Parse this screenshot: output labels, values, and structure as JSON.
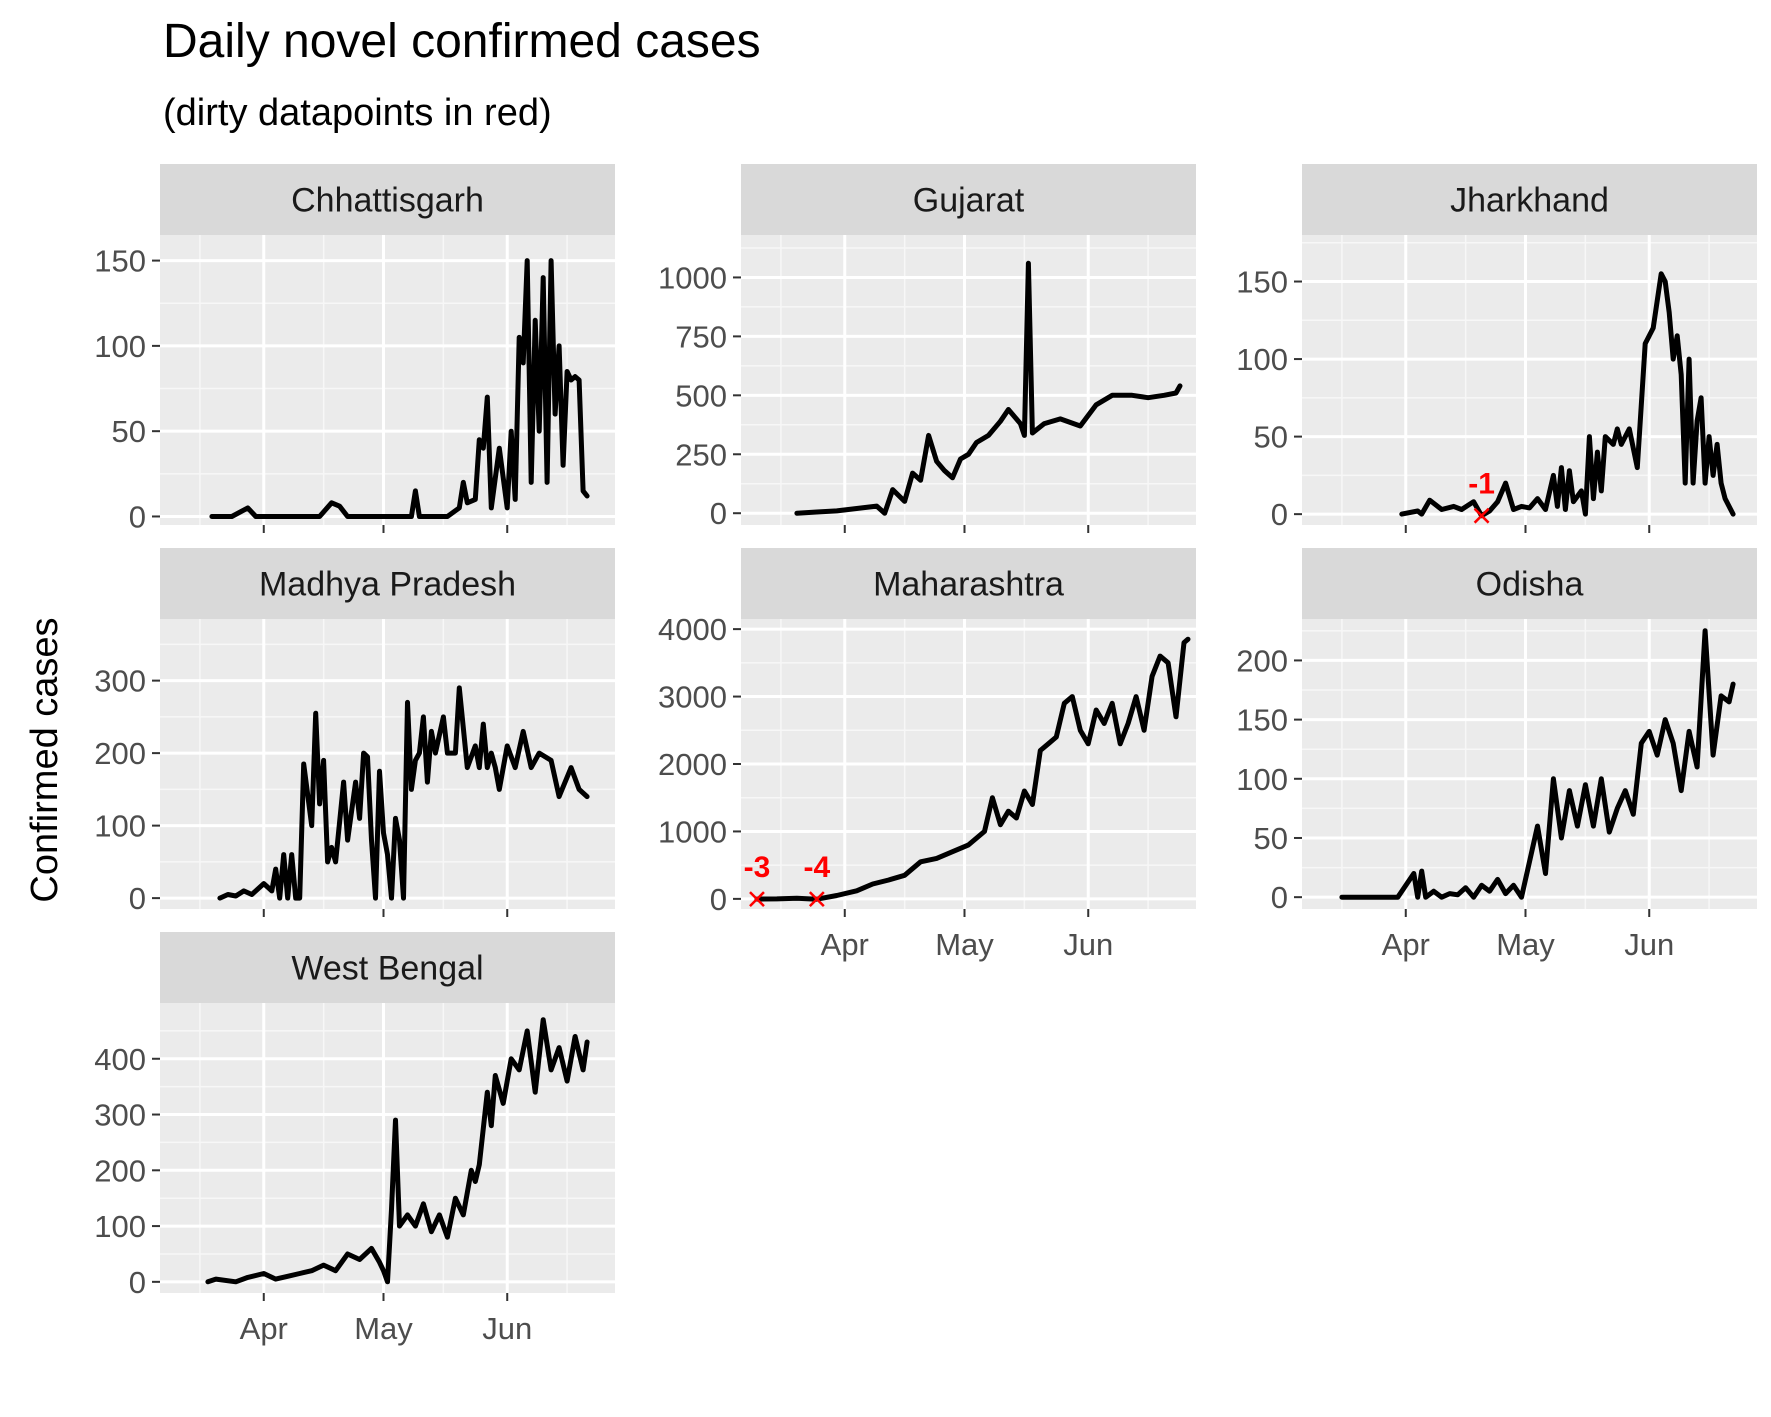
{
  "chart_data": {
    "type": "line",
    "title": "Daily novel confirmed cases",
    "subtitle": "(dirty datapoints in red)",
    "ylabel": "Confirmed cases",
    "xlabel": "",
    "x_ticks": [
      "Apr",
      "May",
      "Jun"
    ],
    "line_color": "#000000",
    "dirty_color": "#ff0000",
    "grid": true,
    "panels": [
      {
        "name": "Chhattisgarh",
        "ylim": [
          -5,
          165
        ],
        "yticks": [
          0,
          50,
          100,
          150
        ],
        "x": [
          "2020-03-19",
          "2020-03-24",
          "2020-03-28",
          "2020-03-30",
          "2020-04-05",
          "2020-04-15",
          "2020-04-18",
          "2020-04-20",
          "2020-04-22",
          "2020-04-30",
          "2020-05-08",
          "2020-05-09",
          "2020-05-10",
          "2020-05-17",
          "2020-05-20",
          "2020-05-21",
          "2020-05-22",
          "2020-05-24",
          "2020-05-25",
          "2020-05-26",
          "2020-05-27",
          "2020-05-28",
          "2020-05-30",
          "2020-06-01",
          "2020-06-02",
          "2020-06-03",
          "2020-06-04",
          "2020-06-05",
          "2020-06-06",
          "2020-06-07",
          "2020-06-08",
          "2020-06-09",
          "2020-06-10",
          "2020-06-11",
          "2020-06-12",
          "2020-06-13",
          "2020-06-14",
          "2020-06-15",
          "2020-06-16",
          "2020-06-17",
          "2020-06-18",
          "2020-06-19",
          "2020-06-20",
          "2020-06-21"
        ],
        "y": [
          0,
          0,
          5,
          0,
          0,
          0,
          8,
          6,
          0,
          0,
          0,
          15,
          0,
          0,
          5,
          20,
          8,
          10,
          45,
          40,
          70,
          5,
          40,
          5,
          50,
          10,
          105,
          90,
          150,
          20,
          115,
          50,
          140,
          20,
          150,
          60,
          100,
          30,
          85,
          80,
          82,
          80,
          15,
          12
        ],
        "dirty": []
      },
      {
        "name": "Gujarat",
        "ylim": [
          -50,
          1180
        ],
        "yticks": [
          0,
          250,
          500,
          750,
          1000
        ],
        "x": [
          "2020-03-20",
          "2020-03-25",
          "2020-03-30",
          "2020-04-04",
          "2020-04-09",
          "2020-04-11",
          "2020-04-13",
          "2020-04-16",
          "2020-04-18",
          "2020-04-20",
          "2020-04-22",
          "2020-04-24",
          "2020-04-26",
          "2020-04-28",
          "2020-04-30",
          "2020-05-02",
          "2020-05-04",
          "2020-05-07",
          "2020-05-10",
          "2020-05-12",
          "2020-05-14",
          "2020-05-15",
          "2020-05-16",
          "2020-05-17",
          "2020-05-18",
          "2020-05-21",
          "2020-05-25",
          "2020-05-30",
          "2020-06-03",
          "2020-06-07",
          "2020-06-12",
          "2020-06-16",
          "2020-06-20",
          "2020-06-23",
          "2020-06-24"
        ],
        "y": [
          0,
          5,
          10,
          20,
          30,
          0,
          100,
          50,
          170,
          140,
          330,
          220,
          180,
          150,
          230,
          250,
          300,
          330,
          390,
          440,
          400,
          380,
          330,
          1060,
          340,
          380,
          400,
          370,
          460,
          500,
          500,
          490,
          500,
          510,
          540
        ],
        "dirty": []
      },
      {
        "name": "Jharkhand",
        "ylim": [
          -7,
          180
        ],
        "yticks": [
          0,
          50,
          100,
          150
        ],
        "x": [
          "2020-03-31",
          "2020-04-04",
          "2020-04-05",
          "2020-04-07",
          "2020-04-10",
          "2020-04-13",
          "2020-04-15",
          "2020-04-18",
          "2020-04-20",
          "2020-04-22",
          "2020-04-24",
          "2020-04-26",
          "2020-04-28",
          "2020-04-30",
          "2020-05-02",
          "2020-05-04",
          "2020-05-06",
          "2020-05-08",
          "2020-05-09",
          "2020-05-10",
          "2020-05-11",
          "2020-05-12",
          "2020-05-13",
          "2020-05-15",
          "2020-05-16",
          "2020-05-17",
          "2020-05-18",
          "2020-05-19",
          "2020-05-20",
          "2020-05-21",
          "2020-05-23",
          "2020-05-24",
          "2020-05-25",
          "2020-05-27",
          "2020-05-29",
          "2020-05-31",
          "2020-06-02",
          "2020-06-04",
          "2020-06-05",
          "2020-06-06",
          "2020-06-07",
          "2020-06-08",
          "2020-06-09",
          "2020-06-10",
          "2020-06-11",
          "2020-06-12",
          "2020-06-13",
          "2020-06-14",
          "2020-06-15",
          "2020-06-16",
          "2020-06-17",
          "2020-06-18",
          "2020-06-19",
          "2020-06-20",
          "2020-06-21",
          "2020-06-22"
        ],
        "y": [
          0,
          2,
          0,
          9,
          3,
          5,
          3,
          8,
          -1,
          2,
          8,
          20,
          3,
          5,
          4,
          10,
          3,
          25,
          5,
          30,
          3,
          28,
          8,
          15,
          0,
          50,
          10,
          40,
          15,
          50,
          45,
          55,
          45,
          55,
          30,
          110,
          120,
          155,
          150,
          130,
          100,
          115,
          90,
          20,
          100,
          20,
          60,
          75,
          20,
          50,
          25,
          45,
          20,
          10,
          5,
          0
        ],
        "dirty": [
          {
            "x": "2020-04-20",
            "y": -1,
            "label": "-1"
          }
        ]
      },
      {
        "name": "Madhya Pradesh",
        "ylim": [
          -15,
          385
        ],
        "yticks": [
          0,
          100,
          200,
          300
        ],
        "x": [
          "2020-03-21",
          "2020-03-23",
          "2020-03-25",
          "2020-03-27",
          "2020-03-29",
          "2020-04-01",
          "2020-04-03",
          "2020-04-04",
          "2020-04-05",
          "2020-04-06",
          "2020-04-07",
          "2020-04-08",
          "2020-04-09",
          "2020-04-10",
          "2020-04-11",
          "2020-04-13",
          "2020-04-14",
          "2020-04-15",
          "2020-04-16",
          "2020-04-17",
          "2020-04-18",
          "2020-04-19",
          "2020-04-21",
          "2020-04-22",
          "2020-04-24",
          "2020-04-25",
          "2020-04-26",
          "2020-04-27",
          "2020-04-28",
          "2020-04-29",
          "2020-04-30",
          "2020-05-01",
          "2020-05-02",
          "2020-05-03",
          "2020-05-04",
          "2020-05-05",
          "2020-05-06",
          "2020-05-07",
          "2020-05-08",
          "2020-05-09",
          "2020-05-10",
          "2020-05-11",
          "2020-05-12",
          "2020-05-13",
          "2020-05-14",
          "2020-05-16",
          "2020-05-17",
          "2020-05-18",
          "2020-05-19",
          "2020-05-20",
          "2020-05-22",
          "2020-05-24",
          "2020-05-25",
          "2020-05-26",
          "2020-05-27",
          "2020-05-28",
          "2020-05-29",
          "2020-05-30",
          "2020-06-01",
          "2020-06-03",
          "2020-06-05",
          "2020-06-07",
          "2020-06-09",
          "2020-06-12",
          "2020-06-14",
          "2020-06-17",
          "2020-06-19",
          "2020-06-21"
        ],
        "y": [
          0,
          5,
          3,
          10,
          5,
          20,
          10,
          40,
          0,
          60,
          0,
          60,
          0,
          0,
          185,
          100,
          255,
          130,
          190,
          50,
          70,
          50,
          160,
          80,
          160,
          110,
          200,
          195,
          80,
          0,
          175,
          90,
          60,
          0,
          110,
          80,
          0,
          270,
          150,
          190,
          200,
          250,
          160,
          230,
          200,
          250,
          200,
          200,
          200,
          290,
          180,
          210,
          180,
          240,
          180,
          200,
          180,
          150,
          210,
          180,
          230,
          180,
          200,
          190,
          140,
          180,
          150,
          140
        ],
        "dirty": []
      },
      {
        "name": "Maharashtra",
        "ylim": [
          -150,
          4150
        ],
        "yticks": [
          0,
          1000,
          2000,
          3000,
          4000
        ],
        "x": [
          "2020-03-10",
          "2020-03-15",
          "2020-03-20",
          "2020-03-25",
          "2020-03-30",
          "2020-04-04",
          "2020-04-08",
          "2020-04-12",
          "2020-04-16",
          "2020-04-20",
          "2020-04-24",
          "2020-04-28",
          "2020-05-02",
          "2020-05-06",
          "2020-05-08",
          "2020-05-10",
          "2020-05-12",
          "2020-05-14",
          "2020-05-16",
          "2020-05-18",
          "2020-05-20",
          "2020-05-22",
          "2020-05-24",
          "2020-05-26",
          "2020-05-28",
          "2020-05-30",
          "2020-06-01",
          "2020-06-03",
          "2020-06-05",
          "2020-06-07",
          "2020-06-09",
          "2020-06-11",
          "2020-06-13",
          "2020-06-15",
          "2020-06-17",
          "2020-06-19",
          "2020-06-21",
          "2020-06-23",
          "2020-06-25",
          "2020-06-26"
        ],
        "y": [
          -3,
          0,
          10,
          -4,
          50,
          120,
          220,
          280,
          350,
          550,
          600,
          700,
          800,
          1000,
          1500,
          1100,
          1300,
          1200,
          1600,
          1400,
          2200,
          2300,
          2400,
          2900,
          3000,
          2500,
          2300,
          2800,
          2600,
          2900,
          2300,
          2600,
          3000,
          2500,
          3300,
          3600,
          3500,
          2700,
          3800,
          3850
        ],
        "dirty": [
          {
            "x": "2020-03-10",
            "y": -3,
            "label": "-3"
          },
          {
            "x": "2020-03-25",
            "y": -4,
            "label": "-4"
          }
        ]
      },
      {
        "name": "Odisha",
        "ylim": [
          -10,
          235
        ],
        "yticks": [
          0,
          50,
          100,
          150,
          200
        ],
        "x": [
          "2020-03-16",
          "2020-03-20",
          "2020-03-25",
          "2020-03-30",
          "2020-04-03",
          "2020-04-04",
          "2020-04-05",
          "2020-04-06",
          "2020-04-08",
          "2020-04-10",
          "2020-04-12",
          "2020-04-14",
          "2020-04-16",
          "2020-04-18",
          "2020-04-20",
          "2020-04-22",
          "2020-04-24",
          "2020-04-26",
          "2020-04-28",
          "2020-04-30",
          "2020-05-02",
          "2020-05-04",
          "2020-05-06",
          "2020-05-08",
          "2020-05-10",
          "2020-05-12",
          "2020-05-14",
          "2020-05-16",
          "2020-05-18",
          "2020-05-20",
          "2020-05-22",
          "2020-05-24",
          "2020-05-26",
          "2020-05-28",
          "2020-05-30",
          "2020-06-01",
          "2020-06-03",
          "2020-06-05",
          "2020-06-07",
          "2020-06-09",
          "2020-06-11",
          "2020-06-13",
          "2020-06-15",
          "2020-06-17",
          "2020-06-19",
          "2020-06-21",
          "2020-06-22"
        ],
        "y": [
          0,
          0,
          0,
          0,
          20,
          0,
          22,
          0,
          5,
          0,
          3,
          2,
          8,
          0,
          10,
          5,
          15,
          3,
          10,
          0,
          30,
          60,
          20,
          100,
          50,
          90,
          60,
          95,
          60,
          100,
          55,
          75,
          90,
          70,
          130,
          140,
          120,
          150,
          130,
          90,
          140,
          110,
          225,
          120,
          170,
          165,
          180
        ],
        "dirty": []
      },
      {
        "name": "West Bengal",
        "ylim": [
          -20,
          500
        ],
        "yticks": [
          0,
          100,
          200,
          300,
          400
        ],
        "x": [
          "2020-03-18",
          "2020-03-20",
          "2020-03-25",
          "2020-03-28",
          "2020-04-01",
          "2020-04-04",
          "2020-04-07",
          "2020-04-10",
          "2020-04-13",
          "2020-04-16",
          "2020-04-19",
          "2020-04-22",
          "2020-04-25",
          "2020-04-28",
          "2020-04-30",
          "2020-05-01",
          "2020-05-02",
          "2020-05-03",
          "2020-05-04",
          "2020-05-05",
          "2020-05-07",
          "2020-05-09",
          "2020-05-11",
          "2020-05-13",
          "2020-05-15",
          "2020-05-17",
          "2020-05-19",
          "2020-05-21",
          "2020-05-23",
          "2020-05-24",
          "2020-05-25",
          "2020-05-27",
          "2020-05-28",
          "2020-05-29",
          "2020-05-31",
          "2020-06-02",
          "2020-06-04",
          "2020-06-06",
          "2020-06-08",
          "2020-06-10",
          "2020-06-12",
          "2020-06-14",
          "2020-06-16",
          "2020-06-18",
          "2020-06-20",
          "2020-06-21"
        ],
        "y": [
          0,
          5,
          0,
          8,
          15,
          5,
          10,
          15,
          20,
          30,
          20,
          50,
          40,
          60,
          35,
          20,
          0,
          130,
          290,
          100,
          120,
          100,
          140,
          90,
          120,
          80,
          150,
          120,
          200,
          180,
          210,
          340,
          280,
          370,
          320,
          400,
          380,
          450,
          340,
          470,
          380,
          420,
          360,
          440,
          380,
          430
        ],
        "dirty": []
      }
    ]
  }
}
